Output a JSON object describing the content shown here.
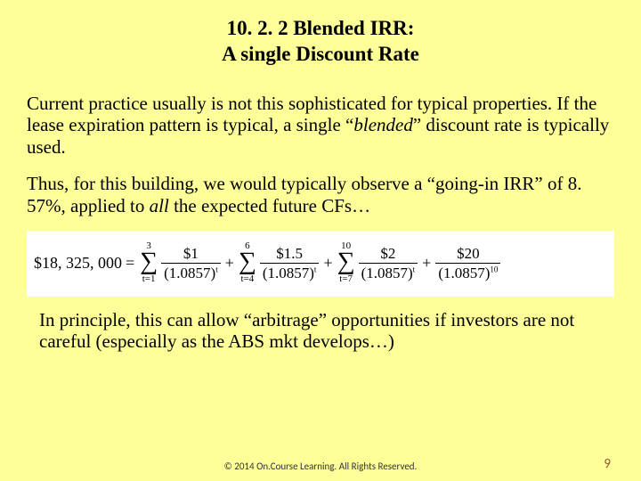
{
  "title": {
    "line1": "10. 2. 2 Blended IRR:",
    "line2": "A single Discount Rate"
  },
  "para1": {
    "pre": "Current practice usually is not this sophisticated for typical properties. If the lease expiration pattern is typical, a single “",
    "em": "blended",
    "post": "” discount rate is typically used."
  },
  "para2": {
    "pre": "Thus, for this building, we would typically observe a “going-in IRR” of 8. 57%, applied to ",
    "em": "all",
    "post": " the expected future CFs…"
  },
  "formula": {
    "lhs": "$18, 325, 000",
    "terms": [
      {
        "sum_top": "3",
        "sum_bot": "t=1",
        "num": "$1",
        "den": "(1.0857)",
        "exp": "t",
        "has_sum": true
      },
      {
        "sum_top": "6",
        "sum_bot": "t=4",
        "num": "$1.5",
        "den": "(1.0857)",
        "exp": "t",
        "has_sum": true
      },
      {
        "sum_top": "10",
        "sum_bot": "t=7",
        "num": "$2",
        "den": "(1.0857)",
        "exp": "t",
        "has_sum": true
      },
      {
        "sum_top": "",
        "sum_bot": "",
        "num": "$20",
        "den": "(1.0857)",
        "exp": "10",
        "has_sum": false
      }
    ]
  },
  "para3": "In principle, this can allow “arbitrage” opportunities if investors are not careful (especially as the ABS mkt develops…)",
  "footer": "© 2014 On.Course Learning. All Rights Reserved.",
  "pagenum": "9"
}
